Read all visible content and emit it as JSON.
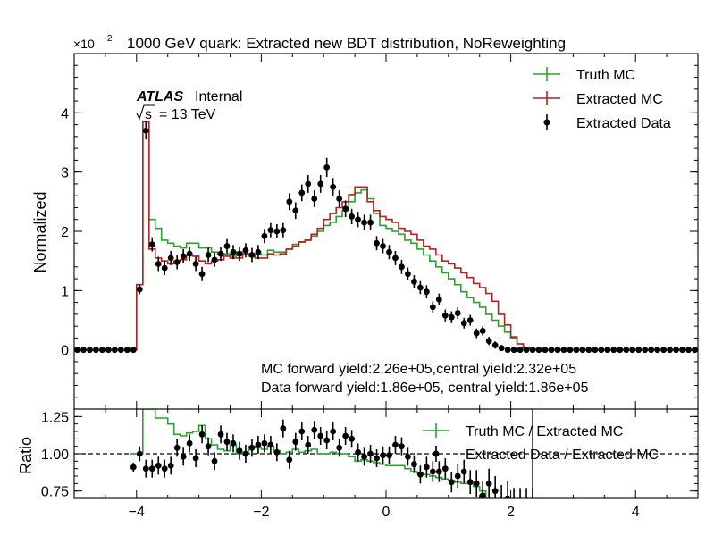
{
  "chart_data": [
    {
      "type": "line",
      "title": "1000 GeV quark: Extracted new BDT distribution, NoReweighting",
      "ylabel": "Normalized",
      "y_multiplier": "×10",
      "y_multiplier_exp": "−2",
      "ylim": [
        -1.0,
        5.0
      ],
      "yticks": [
        0,
        1,
        2,
        3,
        4
      ],
      "yticklabels": [
        "0",
        "1",
        "2",
        "3",
        "4"
      ],
      "xlim": [
        -5,
        5
      ],
      "atlas_label": "ATLAS",
      "atlas_status": "Internal",
      "energy_root": "s",
      "energy_value": "= 13 TeV",
      "annotations": [
        "MC forward yield:2.26e+05,central yield:2.32e+05",
        "Data forward yield:1.86e+05, central yield:1.86e+05"
      ],
      "legend_position": "top-right",
      "bin_width": 0.1,
      "x_start": -5.0,
      "series": [
        {
          "name": "Truth MC",
          "style": "step",
          "color": "#2ca02c",
          "values": [
            0,
            0,
            0,
            0,
            0,
            0,
            0,
            0,
            0,
            0,
            1.1,
            3.85,
            2.2,
            2.05,
            1.85,
            1.8,
            1.75,
            1.72,
            1.8,
            1.8,
            1.72,
            1.72,
            1.65,
            1.62,
            1.62,
            1.58,
            1.65,
            1.62,
            1.58,
            1.62,
            1.6,
            1.68,
            1.65,
            1.65,
            1.7,
            1.78,
            1.82,
            1.85,
            1.92,
            2.0,
            2.1,
            2.15,
            2.25,
            2.35,
            2.5,
            2.65,
            2.7,
            2.55,
            2.3,
            2.1,
            2.05,
            2.0,
            1.95,
            1.85,
            1.8,
            1.7,
            1.6,
            1.5,
            1.4,
            1.3,
            1.2,
            1.1,
            0.98,
            0.88,
            0.8,
            0.72,
            0.6,
            0.5,
            0.4,
            0.3,
            0.2,
            0.1,
            0.03,
            0.01,
            0,
            0,
            0,
            0,
            0,
            0,
            0,
            0,
            0,
            0,
            0,
            0,
            0,
            0,
            0,
            0,
            0,
            0,
            0,
            0,
            0,
            0,
            0,
            0,
            0,
            0
          ]
        },
        {
          "name": "Extracted MC",
          "style": "step",
          "color": "#b22222",
          "values": [
            0,
            0,
            0,
            0,
            0,
            0,
            0,
            0,
            0,
            0,
            1.1,
            3.85,
            1.7,
            1.55,
            1.5,
            1.45,
            1.5,
            1.52,
            1.6,
            1.58,
            1.5,
            1.45,
            1.5,
            1.52,
            1.58,
            1.55,
            1.55,
            1.62,
            1.6,
            1.55,
            1.55,
            1.62,
            1.6,
            1.62,
            1.7,
            1.75,
            1.82,
            1.85,
            1.95,
            2.05,
            2.2,
            2.3,
            2.4,
            2.5,
            2.62,
            2.75,
            2.75,
            2.5,
            2.35,
            2.25,
            2.2,
            2.15,
            2.05,
            2.0,
            1.95,
            1.85,
            1.75,
            1.7,
            1.6,
            1.5,
            1.45,
            1.38,
            1.3,
            1.22,
            1.12,
            1.05,
            0.95,
            0.82,
            0.6,
            0.42,
            0.22,
            0.1,
            0.03,
            0.01,
            0,
            0,
            0,
            0,
            0,
            0,
            0,
            0,
            0,
            0,
            0,
            0,
            0,
            0,
            0,
            0,
            0,
            0,
            0,
            0,
            0,
            0,
            0,
            0,
            0,
            0
          ]
        },
        {
          "name": "Extracted Data",
          "style": "points",
          "color": "#000000",
          "values": [
            0,
            0,
            0,
            0,
            0,
            0,
            0,
            0,
            0,
            0,
            1.02,
            3.7,
            1.78,
            1.45,
            1.38,
            1.55,
            1.48,
            1.58,
            1.62,
            1.45,
            1.28,
            1.6,
            1.52,
            1.62,
            1.75,
            1.65,
            1.62,
            1.68,
            1.6,
            1.65,
            1.92,
            2.02,
            2.0,
            2.02,
            2.5,
            2.35,
            2.65,
            2.8,
            2.55,
            2.8,
            3.08,
            2.75,
            2.55,
            2.38,
            2.25,
            2.2,
            2.15,
            2.15,
            1.8,
            1.75,
            1.65,
            1.55,
            1.4,
            1.28,
            1.15,
            1.05,
            0.98,
            0.72,
            0.85,
            0.58,
            0.55,
            0.62,
            0.45,
            0.5,
            0.28,
            0.32,
            0.15,
            0.08,
            0.03,
            0.0,
            0,
            0,
            0,
            0,
            0,
            0,
            0,
            0,
            0,
            0,
            0,
            0,
            0,
            0,
            0,
            0,
            0,
            0,
            0,
            0,
            0,
            0,
            0,
            0,
            0,
            0,
            0,
            0,
            0,
            0
          ],
          "errors": [
            0,
            0,
            0,
            0,
            0,
            0,
            0,
            0,
            0,
            0,
            0.08,
            0.15,
            0.12,
            0.12,
            0.12,
            0.12,
            0.12,
            0.12,
            0.12,
            0.12,
            0.12,
            0.12,
            0.12,
            0.12,
            0.12,
            0.12,
            0.12,
            0.12,
            0.12,
            0.12,
            0.12,
            0.12,
            0.12,
            0.12,
            0.14,
            0.14,
            0.14,
            0.15,
            0.14,
            0.15,
            0.16,
            0.15,
            0.14,
            0.14,
            0.13,
            0.13,
            0.13,
            0.13,
            0.12,
            0.12,
            0.12,
            0.12,
            0.12,
            0.11,
            0.11,
            0.11,
            0.11,
            0.1,
            0.1,
            0.1,
            0.1,
            0.1,
            0.09,
            0.09,
            0.08,
            0.08,
            0.07,
            0.06,
            0.05,
            0.03,
            0,
            0,
            0,
            0,
            0,
            0,
            0,
            0,
            0,
            0,
            0,
            0,
            0,
            0,
            0,
            0,
            0,
            0,
            0,
            0,
            0,
            0,
            0,
            0,
            0,
            0,
            0,
            0,
            0,
            0
          ]
        }
      ]
    },
    {
      "type": "line",
      "ylabel": "Ratio",
      "ylim": [
        0.7,
        1.3
      ],
      "yticks": [
        0.75,
        1.0,
        1.25
      ],
      "yticklabels": [
        "0.75",
        "1.00",
        "1.25"
      ],
      "xlim": [
        -5,
        5
      ],
      "xticks": [
        -4,
        -2,
        0,
        2,
        4
      ],
      "xticklabels": [
        "−4",
        "−2",
        "0",
        "2",
        "4"
      ],
      "reference_line": 1.0,
      "vertical_line_x": 2.35,
      "legend_position": "top-right",
      "bin_width": 0.1,
      "x_start": -4.1,
      "series": [
        {
          "name": "Truth MC / Extracted MC",
          "style": "step",
          "color": "#2ca02c",
          "values": [
            1.0,
            1.0,
            1.3,
            1.3,
            1.24,
            1.24,
            1.2,
            1.13,
            1.12,
            1.14,
            1.15,
            1.19,
            1.1,
            1.06,
            1.03,
            1.02,
            1.06,
            1.0,
            1.01,
            1.05,
            1.04,
            1.03,
            1.05,
            1.02,
            1.0,
            1.01,
            1.03,
            1.01,
            1.02,
            1.03,
            1.0,
            1.0,
            1.01,
            1.0,
            1.0,
            0.98,
            0.95,
            0.96,
            0.95,
            0.94,
            0.93,
            0.92,
            0.92,
            0.92,
            0.9,
            0.88,
            0.87,
            0.86,
            0.85,
            0.84,
            0.83,
            0.82,
            0.81,
            0.8,
            0.8,
            0.78,
            0.75,
            0.7,
            0.68,
            0.65,
            0.62,
            0.6,
            0.6,
            0.6,
            0.6
          ]
        },
        {
          "name": "Extracted Data / Extracted MC",
          "style": "points",
          "color": "#000000",
          "values": [
            0.91,
            1.0,
            0.9,
            0.9,
            0.92,
            0.9,
            0.92,
            1.04,
            0.98,
            1.07,
            0.97,
            1.13,
            1.05,
            0.95,
            1.13,
            1.08,
            1.07,
            1.02,
            1.0,
            1.04,
            1.06,
            1.07,
            1.06,
            1.01,
            1.17,
            0.96,
            1.08,
            1.15,
            1.06,
            1.16,
            1.12,
            1.09,
            1.15,
            1.04,
            1.12,
            1.1,
            1.01,
            0.98,
            1.0,
            0.97,
            0.99,
            0.99,
            1.06,
            1.05,
            0.98,
            0.93,
            0.86,
            0.91,
            0.88,
            0.88,
            0.9,
            0.81,
            0.85,
            0.88,
            0.81,
            0.8,
            0.72,
            0.8,
            0.75,
            0.68,
            0.7,
            0.65,
            0.65,
            0.65,
            0.65
          ],
          "errors": [
            0.03,
            0.05,
            0.06,
            0.06,
            0.06,
            0.06,
            0.06,
            0.06,
            0.06,
            0.06,
            0.06,
            0.06,
            0.06,
            0.06,
            0.06,
            0.06,
            0.06,
            0.06,
            0.06,
            0.06,
            0.06,
            0.06,
            0.06,
            0.06,
            0.06,
            0.06,
            0.06,
            0.06,
            0.06,
            0.06,
            0.06,
            0.06,
            0.06,
            0.06,
            0.06,
            0.06,
            0.06,
            0.06,
            0.06,
            0.06,
            0.06,
            0.06,
            0.06,
            0.06,
            0.06,
            0.06,
            0.06,
            0.07,
            0.07,
            0.07,
            0.07,
            0.07,
            0.08,
            0.08,
            0.08,
            0.09,
            0.1,
            0.1,
            0.1,
            0.11,
            0.12,
            0.12,
            0.12,
            0.12,
            0.12
          ]
        }
      ]
    }
  ]
}
